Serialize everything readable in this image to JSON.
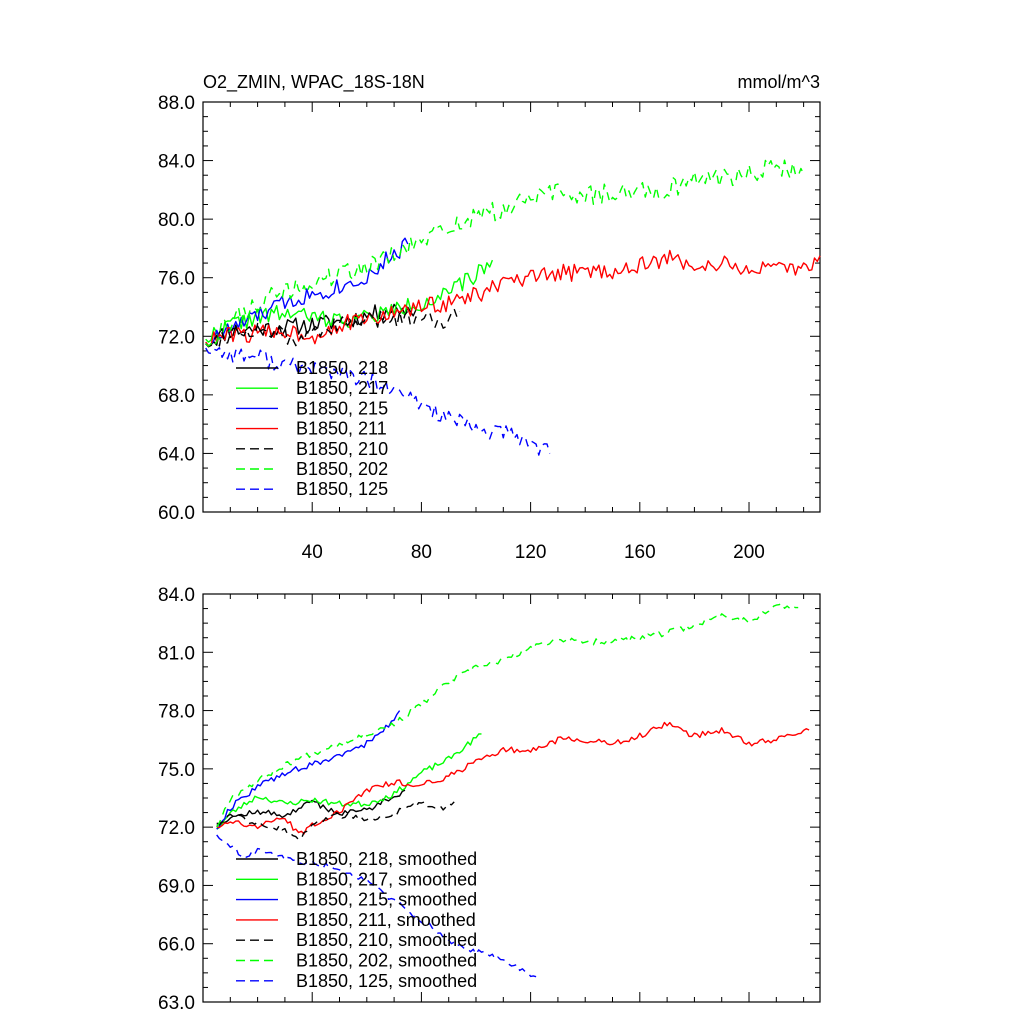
{
  "chart_data": [
    {
      "type": "line",
      "title": "O2_ZMIN, WPAC_18S-18N",
      "units": "mmol/m^3",
      "xlabel": "",
      "ylabel": "",
      "xlim": [
        0,
        226
      ],
      "ylim": [
        60,
        88
      ],
      "yticks": [
        60,
        64,
        68,
        72,
        76,
        80,
        84,
        88
      ],
      "ytick_labels": [
        "60.0",
        "64.0",
        "68.0",
        "72.0",
        "76.0",
        "80.0",
        "84.0",
        "88.0"
      ],
      "xticks": [
        40,
        80,
        120,
        160,
        200
      ],
      "xtick_labels": [
        "40",
        "80",
        "120",
        "160",
        "200"
      ],
      "legend_position": "bottom-left",
      "grid": false,
      "series": [
        {
          "name": "B1850, 218",
          "color": "#000000",
          "dash": "solid",
          "noise": 0.6,
          "seed": 11,
          "x": [
            1,
            10,
            20,
            30,
            40,
            50,
            60,
            70,
            78
          ],
          "y": [
            71.5,
            72.4,
            72.5,
            72.6,
            72.8,
            73.0,
            73.4,
            73.9,
            73.8
          ]
        },
        {
          "name": "B1850, 217",
          "color": "#00ff00",
          "dash": "solid",
          "noise": 0.6,
          "seed": 22,
          "x": [
            1,
            10,
            20,
            30,
            40,
            50,
            60,
            70,
            80,
            90,
            100,
            106
          ],
          "y": [
            71.8,
            72.8,
            73.3,
            73.6,
            73.3,
            73.1,
            73.3,
            73.8,
            74.3,
            74.9,
            76.2,
            77.2
          ]
        },
        {
          "name": "B1850, 215",
          "color": "#0000ff",
          "dash": "solid",
          "noise": 0.6,
          "seed": 33,
          "x": [
            1,
            10,
            20,
            30,
            40,
            50,
            60,
            70,
            75
          ],
          "y": [
            71.5,
            72.5,
            73.4,
            74.3,
            74.9,
            75.4,
            76.1,
            77.6,
            78.3
          ]
        },
        {
          "name": "B1850, 211",
          "color": "#ff0000",
          "dash": "solid",
          "noise": 0.6,
          "seed": 44,
          "x": [
            1,
            10,
            20,
            30,
            40,
            50,
            60,
            70,
            80,
            90,
            100,
            110,
            120,
            130,
            140,
            150,
            160,
            170,
            180,
            190,
            200,
            210,
            220,
            226
          ],
          "y": [
            71.6,
            72.1,
            72.2,
            72.4,
            72.0,
            72.8,
            73.1,
            73.6,
            74.0,
            74.3,
            74.8,
            75.6,
            75.9,
            76.3,
            76.4,
            76.5,
            76.8,
            77.3,
            76.9,
            76.9,
            76.6,
            76.5,
            76.6,
            77.5
          ]
        },
        {
          "name": "B1850, 210",
          "color": "#000000",
          "dash": "8,6",
          "noise": 0.6,
          "seed": 55,
          "x": [
            1,
            10,
            20,
            30,
            35,
            40,
            50,
            60,
            70,
            80,
            90,
            94
          ],
          "y": [
            71.5,
            72.2,
            72.5,
            72.1,
            71.4,
            72.5,
            72.7,
            73.0,
            73.2,
            73.3,
            73.1,
            73.7
          ]
        },
        {
          "name": "B1850, 202",
          "color": "#00ff00",
          "dash": "8,6",
          "noise": 0.7,
          "seed": 66,
          "x": [
            1,
            10,
            20,
            30,
            40,
            50,
            60,
            70,
            80,
            90,
            100,
            110,
            120,
            130,
            140,
            150,
            160,
            170,
            180,
            190,
            200,
            210,
            220
          ],
          "y": [
            71.5,
            73.0,
            74.3,
            75.0,
            75.6,
            76.2,
            76.8,
            77.5,
            78.5,
            79.5,
            80.2,
            80.6,
            81.5,
            81.8,
            81.6,
            81.8,
            81.9,
            82.1,
            82.7,
            82.8,
            83.2,
            83.6,
            83.1
          ]
        },
        {
          "name": "B1850, 125",
          "color": "#0000ff",
          "dash": "8,6",
          "noise": 0.6,
          "seed": 77,
          "x": [
            1,
            10,
            20,
            30,
            40,
            50,
            60,
            70,
            80,
            90,
            100,
            110,
            120,
            127
          ],
          "y": [
            71.2,
            70.8,
            70.6,
            70.0,
            69.8,
            69.5,
            69.0,
            68.2,
            67.4,
            66.4,
            65.6,
            65.4,
            64.8,
            64.0
          ]
        }
      ]
    },
    {
      "type": "line",
      "title": "",
      "xlabel": "",
      "ylabel": "",
      "xlim": [
        0,
        226
      ],
      "ylim": [
        63,
        84
      ],
      "yticks": [
        63,
        66,
        69,
        72,
        75,
        78,
        81,
        84
      ],
      "ytick_labels": [
        "63.0",
        "66.0",
        "69.0",
        "72.0",
        "75.0",
        "78.0",
        "81.0",
        "84.0"
      ],
      "xticks": [
        40,
        80,
        120,
        160,
        200
      ],
      "legend_position": "bottom-left",
      "grid": false,
      "series": [
        {
          "name": "B1850, 218, smoothed",
          "color": "#000000",
          "dash": "solid",
          "noise": 0.15,
          "seed": 12,
          "x": [
            5,
            10,
            20,
            30,
            40,
            50,
            60,
            70,
            74
          ],
          "y": [
            72.2,
            72.5,
            72.8,
            72.6,
            73.3,
            72.7,
            72.9,
            73.6,
            73.9
          ]
        },
        {
          "name": "B1850, 217, smoothed",
          "color": "#00ff00",
          "dash": "solid",
          "noise": 0.15,
          "seed": 23,
          "x": [
            5,
            10,
            20,
            30,
            40,
            50,
            60,
            70,
            80,
            90,
            102
          ],
          "y": [
            71.9,
            72.7,
            73.6,
            73.2,
            73.4,
            73.2,
            73.2,
            73.7,
            74.8,
            75.5,
            76.8
          ]
        },
        {
          "name": "B1850, 215, smoothed",
          "color": "#0000ff",
          "dash": "solid",
          "noise": 0.15,
          "seed": 34,
          "x": [
            5,
            10,
            20,
            30,
            40,
            50,
            60,
            70,
            72
          ],
          "y": [
            71.9,
            73.0,
            74.1,
            74.8,
            75.2,
            75.7,
            76.3,
            77.5,
            78.0
          ]
        },
        {
          "name": "B1850, 211, smoothed",
          "color": "#ff0000",
          "dash": "solid",
          "noise": 0.15,
          "seed": 45,
          "x": [
            5,
            10,
            20,
            30,
            35,
            40,
            50,
            60,
            70,
            80,
            90,
            100,
            110,
            120,
            130,
            140,
            150,
            160,
            170,
            180,
            190,
            200,
            210,
            222
          ],
          "y": [
            72.0,
            72.3,
            72.0,
            72.5,
            71.6,
            72.1,
            72.8,
            73.9,
            74.3,
            74.2,
            74.6,
            75.4,
            76.0,
            75.9,
            76.5,
            76.5,
            76.3,
            76.7,
            77.3,
            76.7,
            77.0,
            76.3,
            76.5,
            77.0
          ]
        },
        {
          "name": "B1850, 210, smoothed",
          "color": "#000000",
          "dash": "8,6",
          "noise": 0.15,
          "seed": 56,
          "x": [
            5,
            10,
            20,
            30,
            35,
            40,
            50,
            60,
            70,
            80,
            88,
            92
          ],
          "y": [
            72.1,
            72.6,
            72.2,
            71.9,
            71.3,
            72.2,
            72.6,
            72.4,
            72.7,
            73.3,
            72.9,
            73.3
          ]
        },
        {
          "name": "B1850, 202, smoothed",
          "color": "#00ff00",
          "dash": "8,6",
          "noise": 0.15,
          "seed": 67,
          "x": [
            5,
            10,
            20,
            30,
            40,
            50,
            60,
            70,
            80,
            90,
            100,
            110,
            120,
            130,
            140,
            150,
            160,
            170,
            180,
            190,
            200,
            210,
            218
          ],
          "y": [
            72.0,
            73.5,
            74.4,
            75.2,
            75.8,
            76.3,
            76.8,
            77.3,
            78.3,
            79.5,
            80.2,
            80.6,
            81.2,
            81.7,
            81.5,
            81.6,
            81.7,
            82.0,
            82.4,
            82.9,
            82.6,
            83.4,
            83.3
          ]
        },
        {
          "name": "B1850, 125, smoothed",
          "color": "#0000ff",
          "dash": "8,6",
          "noise": 0.15,
          "seed": 78,
          "x": [
            5,
            10,
            15,
            20,
            30,
            40,
            50,
            60,
            70,
            80,
            90,
            100,
            110,
            122
          ],
          "y": [
            71.6,
            71.0,
            70.5,
            70.8,
            70.4,
            70.1,
            69.9,
            69.2,
            68.2,
            67.2,
            66.2,
            65.6,
            65.2,
            64.3
          ]
        }
      ]
    }
  ]
}
